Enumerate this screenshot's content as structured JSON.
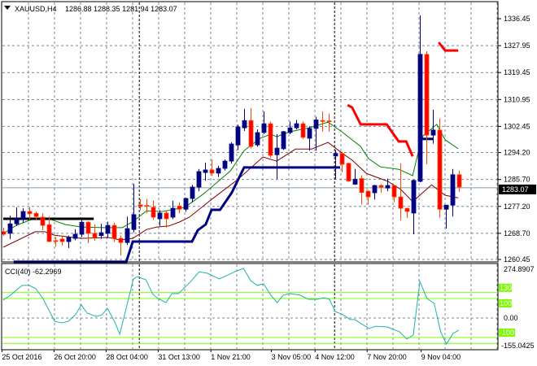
{
  "header": {
    "symbol": "XAUUSD,H4",
    "ohlc": "1286.88 1288.35 1281.94 1283.07"
  },
  "cci_label": "CCI(40) -62.2969",
  "colors": {
    "bull": "#000080",
    "bear": "#ff0000",
    "bear_wick": "#ff4500",
    "ma_fast": "#008000",
    "ma_slow": "#800000",
    "support": "#000080",
    "resistance": "#ff0000",
    "cci": "#20b2aa",
    "levels": "#7cfc00",
    "grid": "#778899"
  },
  "chart_data": [
    {
      "type": "candlestick",
      "title": "XAUUSD,H4",
      "ylim": [
        1260.45,
        1336.45
      ],
      "price_ticks": [
        "1336.45",
        "1327.95",
        "1319.45",
        "1310.95",
        "1302.45",
        "1294.20",
        "1285.70",
        "1277.20",
        "1268.70",
        "1260.45"
      ],
      "current_price": "1283.07",
      "time_labels": [
        {
          "label": "25 Oct 2016",
          "bar": -0.2
        },
        {
          "label": "26 Oct 20:00",
          "bar": 7.8
        },
        {
          "label": "28 Oct 04:00",
          "bar": 15.8
        },
        {
          "label": "31 Oct 13:00",
          "bar": 23.8
        },
        {
          "label": "1 Nov 21:00",
          "bar": 31.9
        },
        {
          "label": "3 Nov 05:00",
          "bar": 41.2
        },
        {
          "label": "4 Nov 12:00",
          "bar": 47.9
        },
        {
          "label": "7 Nov 20:00",
          "bar": 55.9
        },
        {
          "label": "9 Nov 04:00",
          "bar": 64.2
        }
      ],
      "separators": [
        20.9,
        50.9
      ],
      "ohlc": [
        [
          1269.2,
          1270.5,
          1267.9,
          1268.4
        ],
        [
          1268.7,
          1274.3,
          1266.9,
          1271.7
        ],
        [
          1271.7,
          1276.9,
          1271.0,
          1273.5
        ],
        [
          1273.0,
          1276.6,
          1272.0,
          1275.6
        ],
        [
          1275.6,
          1277.0,
          1273.0,
          1274.9
        ],
        [
          1275.0,
          1275.6,
          1272.8,
          1274.0
        ],
        [
          1273.8,
          1275.0,
          1269.7,
          1271.2
        ],
        [
          1271.4,
          1274.0,
          1266.0,
          1266.1
        ],
        [
          1266.4,
          1267.5,
          1264.5,
          1266.2
        ],
        [
          1266.9,
          1268.0,
          1264.8,
          1266.1
        ],
        [
          1266.1,
          1268.0,
          1264.0,
          1267.4
        ],
        [
          1267.1,
          1270.0,
          1266.5,
          1268.4
        ],
        [
          1268.4,
          1273.0,
          1267.5,
          1272.2
        ],
        [
          1272.2,
          1272.5,
          1265.6,
          1268.7
        ],
        [
          1268.7,
          1271.5,
          1266.4,
          1267.4
        ],
        [
          1268.0,
          1271.7,
          1267.0,
          1268.9
        ],
        [
          1268.7,
          1272.4,
          1267.2,
          1271.2
        ],
        [
          1271.2,
          1272.0,
          1266.0,
          1267.1
        ],
        [
          1267.1,
          1268.0,
          1261.7,
          1265.8
        ],
        [
          1265.8,
          1274.0,
          1265.0,
          1270.2
        ],
        [
          1269.9,
          1284.3,
          1269.0,
          1274.6
        ],
        [
          1277.7,
          1279.5,
          1276.0,
          1277.2
        ],
        [
          1277.5,
          1279.5,
          1275.0,
          1277.3
        ],
        [
          1276.9,
          1279.0,
          1273.0,
          1273.8
        ],
        [
          1273.3,
          1276.0,
          1271.0,
          1275.1
        ],
        [
          1275.1,
          1276.0,
          1270.5,
          1273.3
        ],
        [
          1273.8,
          1279.0,
          1273.2,
          1276.6
        ],
        [
          1277.3,
          1278.5,
          1275.0,
          1276.3
        ],
        [
          1276.3,
          1280.0,
          1275.5,
          1279.7
        ],
        [
          1279.7,
          1284.0,
          1278.5,
          1283.3
        ],
        [
          1283.3,
          1289.0,
          1282.0,
          1288.2
        ],
        [
          1287.9,
          1291.0,
          1285.3,
          1288.7
        ],
        [
          1288.7,
          1292.0,
          1286.8,
          1287.7
        ],
        [
          1287.7,
          1290.0,
          1286.5,
          1289.2
        ],
        [
          1289.2,
          1292.0,
          1288.5,
          1291.5
        ],
        [
          1291.5,
          1297.5,
          1290.7,
          1296.9
        ],
        [
          1296.6,
          1303.0,
          1295.0,
          1302.3
        ],
        [
          1302.0,
          1308.0,
          1301.0,
          1304.3
        ],
        [
          1304.3,
          1308.2,
          1295.5,
          1296.1
        ],
        [
          1296.6,
          1301.5,
          1296.0,
          1300.5
        ],
        [
          1300.5,
          1307.2,
          1300.0,
          1303.3
        ],
        [
          1303.3,
          1304.0,
          1292.5,
          1293.3
        ],
        [
          1293.5,
          1300.0,
          1285.8,
          1295.6
        ],
        [
          1295.4,
          1301.0,
          1295.0,
          1300.8
        ],
        [
          1300.5,
          1304.0,
          1300.0,
          1302.0
        ],
        [
          1302.0,
          1304.5,
          1301.5,
          1303.3
        ],
        [
          1303.3,
          1304.0,
          1298.5,
          1299.0
        ],
        [
          1298.7,
          1302.5,
          1294.8,
          1301.8
        ],
        [
          1301.8,
          1305.5,
          1294.8,
          1304.5
        ],
        [
          1304.3,
          1307.2,
          1300.8,
          1304.0
        ],
        [
          1304.2,
          1306.5,
          1300.8,
          1304.0
        ],
        [
          1293.1,
          1295.0,
          1285.8,
          1293.9
        ],
        [
          1293.9,
          1294.5,
          1288.0,
          1290.5
        ],
        [
          1290.8,
          1291.0,
          1285.0,
          1285.2
        ],
        [
          1284.2,
          1289.0,
          1284.0,
          1285.8
        ],
        [
          1286.0,
          1287.0,
          1277.8,
          1281.6
        ],
        [
          1282.0,
          1282.3,
          1277.8,
          1280.2
        ],
        [
          1281.5,
          1284.0,
          1279.4,
          1283.8
        ],
        [
          1283.8,
          1284.2,
          1281.5,
          1283.3
        ],
        [
          1283.0,
          1286.0,
          1282.0,
          1283.8
        ],
        [
          1283.8,
          1284.0,
          1278.5,
          1280.2
        ],
        [
          1280.2,
          1290.8,
          1272.7,
          1276.6
        ],
        [
          1276.6,
          1276.8,
          1273.5,
          1275.6
        ],
        [
          1275.1,
          1285.6,
          1268.4,
          1285.4
        ],
        [
          1285.1,
          1337.5,
          1284.8,
          1325.2
        ],
        [
          1325.2,
          1326.2,
          1290.5,
          1299.7
        ],
        [
          1299.7,
          1307.7,
          1297.0,
          1301.3
        ],
        [
          1301.3,
          1305.0,
          1273.7,
          1276.3
        ],
        [
          1276.3,
          1277.6,
          1270.2,
          1277.6
        ],
        [
          1277.6,
          1289.0,
          1274.0,
          1287.2
        ],
        [
          1287.2,
          1288.5,
          1281.8,
          1283.3
        ]
      ],
      "ma_fast": [
        [
          0,
          1268.6
        ],
        [
          2,
          1271.2
        ],
        [
          4.9,
          1273.5
        ],
        [
          7,
          1273.3
        ],
        [
          9.5,
          1271.5
        ],
        [
          12,
          1270.7
        ],
        [
          15.4,
          1270.5
        ],
        [
          18.3,
          1270.5
        ],
        [
          20,
          1272.5
        ],
        [
          22,
          1275.8
        ],
        [
          24.5,
          1275.6
        ],
        [
          27.9,
          1276.9
        ],
        [
          30.8,
          1281.2
        ],
        [
          34.9,
          1288.4
        ],
        [
          37,
          1294.8
        ],
        [
          39.5,
          1298.7
        ],
        [
          41.1,
          1300.0
        ],
        [
          42,
          1299.2
        ],
        [
          44.1,
          1300.8
        ],
        [
          47,
          1302.0
        ],
        [
          49.9,
          1303.8
        ],
        [
          52,
          1300.8
        ],
        [
          54.9,
          1296.1
        ],
        [
          56.1,
          1292.3
        ],
        [
          57.9,
          1289.7
        ],
        [
          60.8,
          1288.9
        ],
        [
          62.9,
          1286.9
        ],
        [
          63.6,
          1293.0
        ],
        [
          64.5,
          1299.5
        ],
        [
          66.6,
          1303.1
        ],
        [
          67.9,
          1298.2
        ],
        [
          69.9,
          1295.4
        ]
      ],
      "ma_slow": [
        [
          0,
          1264.3
        ],
        [
          4.9,
          1269.2
        ],
        [
          6.4,
          1269.2
        ],
        [
          7.9,
          1268.1
        ],
        [
          12,
          1267.1
        ],
        [
          16.1,
          1267.4
        ],
        [
          17.9,
          1266.6
        ],
        [
          19.9,
          1267.1
        ],
        [
          22,
          1269.9
        ],
        [
          23.6,
          1270.7
        ],
        [
          25.4,
          1271.0
        ],
        [
          27,
          1272.2
        ],
        [
          28.6,
          1273.8
        ],
        [
          32,
          1279.4
        ],
        [
          36.1,
          1285.8
        ],
        [
          39.9,
          1292.8
        ],
        [
          42,
          1291.5
        ],
        [
          44.9,
          1295.3
        ],
        [
          47.4,
          1295.3
        ],
        [
          49.9,
          1297.4
        ],
        [
          52,
          1294.1
        ],
        [
          53.6,
          1291.8
        ],
        [
          55.8,
          1287.6
        ],
        [
          59.1,
          1285.1
        ],
        [
          61.1,
          1282.5
        ],
        [
          62.9,
          1278.7
        ],
        [
          65.8,
          1284.0
        ],
        [
          67.9,
          1280.7
        ],
        [
          69.9,
          1279.9
        ]
      ],
      "support_line": [
        [
          1.6,
          1259.7
        ],
        [
          18.9,
          1259.7
        ],
        [
          19.9,
          1266.1
        ],
        [
          29,
          1266.1
        ],
        [
          29.9,
          1269.7
        ],
        [
          31.1,
          1271.5
        ],
        [
          32,
          1276.1
        ],
        [
          33.3,
          1276.1
        ],
        [
          35.1,
          1281.5
        ],
        [
          37,
          1289.5
        ],
        [
          51.75,
          1289.5
        ]
      ],
      "support_line_2": [
        [
          64.25,
          1298.5
        ],
        [
          66,
          1298.5
        ]
      ],
      "resistance_line": [
        [
          52.9,
          1309.2
        ],
        [
          53.6,
          1308.4
        ],
        [
          54.9,
          1303.1
        ],
        [
          58.9,
          1303.1
        ],
        [
          60.75,
          1297.7
        ],
        [
          61.9,
          1297.7
        ],
        [
          62.9,
          1293.0
        ]
      ],
      "resistance_line_2": [
        [
          66.9,
          1329.0
        ],
        [
          67.9,
          1326.4
        ],
        [
          69.9,
          1326.4
        ]
      ],
      "black_level": [
        [
          0,
          1273.3
        ],
        [
          13.9,
          1273.3
        ]
      ]
    },
    {
      "type": "line",
      "title": "CCI(40)",
      "last_value": -62.2969,
      "ylim": [
        -155.0425,
        274.8907
      ],
      "axis_labels": {
        "top": "274.8907",
        "zero": "0.00",
        "bottom": "-155.0425"
      },
      "levels": [
        {
          "value": 130,
          "label": "130"
        },
        {
          "value": 100,
          "label": "100"
        },
        {
          "value": -100,
          "label": "-100"
        },
        {
          "value": -130,
          "label": ""
        }
      ],
      "points": [
        [
          0,
          92
        ],
        [
          1.1,
          117
        ],
        [
          2.9,
          167
        ],
        [
          4,
          167
        ],
        [
          5,
          150
        ],
        [
          6.1,
          100
        ],
        [
          7.9,
          -17
        ],
        [
          9,
          -25
        ],
        [
          10,
          -17
        ],
        [
          11.1,
          17
        ],
        [
          12,
          67
        ],
        [
          12.9,
          25
        ],
        [
          14.3,
          8
        ],
        [
          15.2,
          17
        ],
        [
          16,
          50
        ],
        [
          17.2,
          -25
        ],
        [
          17.9,
          -83
        ],
        [
          20,
          200
        ],
        [
          20.6,
          212
        ],
        [
          21.9,
          196
        ],
        [
          23,
          121
        ],
        [
          23.8,
          100
        ],
        [
          25,
          79
        ],
        [
          25.9,
          125
        ],
        [
          26.9,
          125
        ],
        [
          28.7,
          183
        ],
        [
          30.1,
          237
        ],
        [
          31.4,
          229
        ],
        [
          33.2,
          200
        ],
        [
          35.9,
          242
        ],
        [
          36.9,
          254
        ],
        [
          38,
          192
        ],
        [
          39,
          167
        ],
        [
          40,
          175
        ],
        [
          41.1,
          117
        ],
        [
          42.1,
          79
        ],
        [
          43,
          117
        ],
        [
          44,
          125
        ],
        [
          45.6,
          117
        ],
        [
          46.9,
          96
        ],
        [
          48.2,
          96
        ],
        [
          49.3,
          104
        ],
        [
          50.1,
          96
        ],
        [
          51,
          33
        ],
        [
          52.2,
          17
        ],
        [
          53.3,
          -8
        ],
        [
          54,
          -8
        ],
        [
          56.2,
          -54
        ],
        [
          57.2,
          -42
        ],
        [
          59,
          -46
        ],
        [
          60.9,
          -71
        ],
        [
          62,
          -108
        ],
        [
          63,
          -87
        ],
        [
          64,
          187
        ],
        [
          65.1,
          100
        ],
        [
          66.2,
          75
        ],
        [
          67.2,
          -71
        ],
        [
          68.1,
          -133
        ],
        [
          69.1,
          -79
        ],
        [
          70,
          -62
        ]
      ]
    }
  ]
}
